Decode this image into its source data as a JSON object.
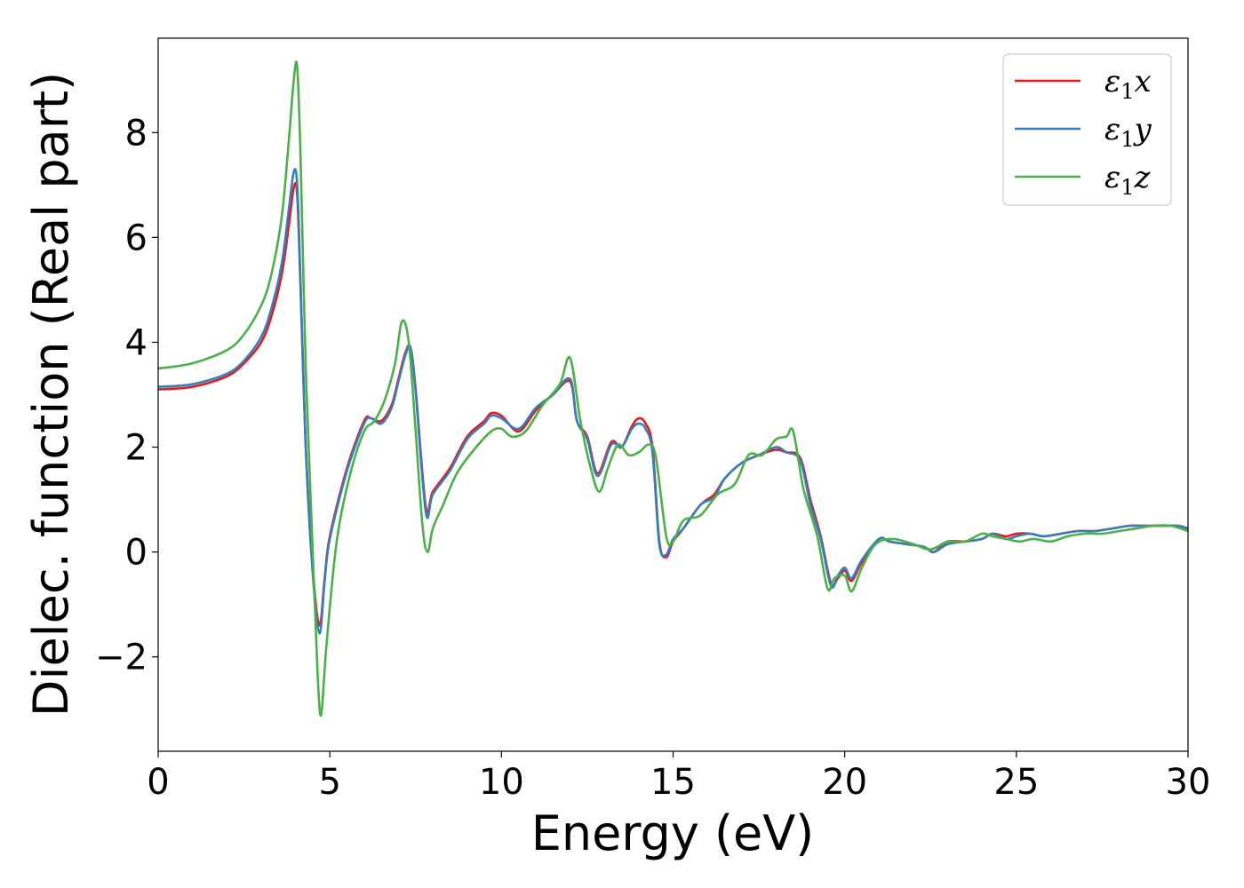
{
  "chart_data": {
    "type": "line",
    "title": "",
    "xlabel": "Energy (eV)",
    "ylabel": "Dielec. function (Real part)",
    "xlim": [
      0,
      30
    ],
    "ylim": [
      -3.8,
      9.8
    ],
    "xticks": [
      0,
      5,
      10,
      15,
      20,
      25,
      30
    ],
    "xtick_labels": [
      "0",
      "5",
      "10",
      "15",
      "20",
      "25",
      "30"
    ],
    "yticks": [
      -2,
      0,
      2,
      4,
      6,
      8
    ],
    "ytick_labels": [
      "−2",
      "0",
      "2",
      "4",
      "6",
      "8"
    ],
    "grid": false,
    "legend_position": "top-right",
    "series": [
      {
        "name": "ε₁x",
        "legend_base": "ε",
        "legend_sub": "1",
        "legend_var": "x",
        "color": "#e41a1c",
        "x": [
          0,
          1,
          2,
          2.5,
          3,
          3.3,
          3.6,
          3.8,
          3.95,
          4.05,
          4.15,
          4.3,
          4.5,
          4.7,
          4.85,
          5,
          5.5,
          6,
          6.2,
          6.5,
          6.8,
          7,
          7.2,
          7.35,
          7.5,
          7.8,
          8,
          8.5,
          9,
          9.5,
          9.7,
          10,
          10.5,
          11,
          11.5,
          12,
          12.2,
          12.5,
          12.8,
          13.2,
          13.5,
          13.8,
          14,
          14.2,
          14.4,
          14.6,
          14.8,
          15,
          15.3,
          15.8,
          16.2,
          16.5,
          17,
          17.5,
          18,
          18.3,
          18.7,
          19,
          19.3,
          19.6,
          19.8,
          20,
          20.2,
          20.5,
          21,
          21.3,
          21.8,
          22.3,
          22.6,
          23,
          23.5,
          24,
          24.3,
          24.7,
          25,
          25.4,
          25.8,
          26.3,
          26.8,
          27.3,
          27.8,
          28.3,
          28.8,
          29.3,
          29.7,
          30
        ],
        "values": [
          3.1,
          3.15,
          3.35,
          3.6,
          4.0,
          4.5,
          5.3,
          6.2,
          6.95,
          6.8,
          5.0,
          2.0,
          -0.3,
          -1.4,
          -0.5,
          0.3,
          1.6,
          2.5,
          2.55,
          2.5,
          2.8,
          3.3,
          3.8,
          3.9,
          3.1,
          0.85,
          1.15,
          1.6,
          2.2,
          2.5,
          2.65,
          2.6,
          2.3,
          2.7,
          3.0,
          3.25,
          2.5,
          2.2,
          1.5,
          2.1,
          2.0,
          2.4,
          2.55,
          2.45,
          2.0,
          0.2,
          -0.1,
          0.2,
          0.45,
          0.9,
          1.1,
          1.4,
          1.7,
          1.85,
          1.95,
          1.9,
          1.8,
          1.0,
          0.3,
          -0.6,
          -0.5,
          -0.35,
          -0.55,
          -0.2,
          0.25,
          0.2,
          0.15,
          0.1,
          0.0,
          0.2,
          0.2,
          0.25,
          0.35,
          0.3,
          0.35,
          0.35,
          0.3,
          0.35,
          0.4,
          0.4,
          0.45,
          0.5,
          0.5,
          0.5,
          0.5,
          0.45
        ]
      },
      {
        "name": "ε₁y",
        "legend_base": "ε",
        "legend_sub": "1",
        "legend_var": "y",
        "color": "#377eb8",
        "x": [
          0,
          1,
          2,
          2.5,
          3,
          3.3,
          3.6,
          3.8,
          3.95,
          4.05,
          4.15,
          4.3,
          4.5,
          4.7,
          4.85,
          5,
          5.5,
          6,
          6.2,
          6.5,
          6.8,
          7,
          7.2,
          7.35,
          7.5,
          7.8,
          8,
          8.5,
          9,
          9.5,
          9.7,
          10,
          10.5,
          11,
          11.5,
          12,
          12.2,
          12.5,
          12.8,
          13.2,
          13.5,
          13.8,
          14,
          14.2,
          14.4,
          14.6,
          14.8,
          15,
          15.3,
          15.8,
          16.2,
          16.5,
          17,
          17.5,
          18,
          18.3,
          18.7,
          19,
          19.3,
          19.6,
          19.8,
          20,
          20.2,
          20.5,
          21,
          21.3,
          21.8,
          22.3,
          22.6,
          23,
          23.5,
          24,
          24.3,
          24.7,
          25,
          25.4,
          25.8,
          26.3,
          26.8,
          27.3,
          27.8,
          28.3,
          28.8,
          29.3,
          29.7,
          30
        ],
        "values": [
          3.15,
          3.2,
          3.4,
          3.65,
          4.1,
          4.65,
          5.5,
          6.5,
          7.25,
          7.0,
          5.1,
          2.0,
          -0.4,
          -1.55,
          -0.55,
          0.25,
          1.55,
          2.45,
          2.55,
          2.45,
          2.75,
          3.25,
          3.75,
          3.9,
          3.05,
          0.75,
          1.1,
          1.55,
          2.15,
          2.45,
          2.6,
          2.55,
          2.35,
          2.75,
          3.0,
          3.3,
          2.5,
          2.15,
          1.45,
          2.05,
          2.0,
          2.35,
          2.45,
          2.35,
          1.9,
          0.15,
          -0.05,
          0.25,
          0.45,
          0.9,
          1.05,
          1.4,
          1.7,
          1.85,
          2.0,
          1.9,
          1.75,
          0.9,
          0.25,
          -0.65,
          -0.45,
          -0.3,
          -0.5,
          -0.15,
          0.25,
          0.2,
          0.15,
          0.1,
          0.0,
          0.15,
          0.2,
          0.25,
          0.35,
          0.25,
          0.3,
          0.35,
          0.3,
          0.35,
          0.4,
          0.4,
          0.45,
          0.5,
          0.5,
          0.5,
          0.5,
          0.45
        ]
      },
      {
        "name": "ε₁z",
        "legend_base": "ε",
        "legend_sub": "1",
        "legend_var": "z",
        "color": "#4daf4a",
        "x": [
          0,
          1,
          2,
          2.5,
          3,
          3.3,
          3.6,
          3.8,
          3.95,
          4.05,
          4.15,
          4.3,
          4.5,
          4.65,
          4.75,
          4.9,
          5.2,
          5.6,
          6,
          6.3,
          6.6,
          6.9,
          7.1,
          7.3,
          7.5,
          7.7,
          7.85,
          8,
          8.3,
          8.7,
          9.2,
          9.7,
          10,
          10.3,
          10.7,
          11.2,
          11.7,
          12,
          12.3,
          12.6,
          12.85,
          13.1,
          13.4,
          13.7,
          14,
          14.3,
          14.5,
          14.8,
          15,
          15.3,
          15.8,
          16.3,
          16.8,
          17.2,
          17.6,
          18,
          18.3,
          18.5,
          18.8,
          19.2,
          19.5,
          19.7,
          20,
          20.2,
          20.5,
          20.9,
          21.4,
          22,
          22.5,
          23,
          23.5,
          24,
          24.3,
          24.7,
          25.1,
          25.5,
          26,
          26.5,
          27,
          27.5,
          28,
          28.5,
          29,
          29.5,
          30
        ],
        "values": [
          3.5,
          3.6,
          3.85,
          4.15,
          4.7,
          5.3,
          6.4,
          7.8,
          9.0,
          9.25,
          7.5,
          3.5,
          0.0,
          -2.4,
          -3.1,
          -1.8,
          0.2,
          1.5,
          2.3,
          2.5,
          2.9,
          3.6,
          4.4,
          4.0,
          2.3,
          0.5,
          -0.0,
          0.45,
          0.9,
          1.5,
          1.95,
          2.3,
          2.35,
          2.2,
          2.3,
          2.8,
          3.2,
          3.7,
          2.5,
          1.6,
          1.15,
          1.6,
          2.05,
          1.85,
          1.9,
          2.05,
          1.8,
          0.3,
          0.2,
          0.6,
          0.7,
          1.1,
          1.3,
          1.85,
          1.85,
          2.15,
          2.2,
          2.3,
          1.2,
          0.3,
          -0.7,
          -0.5,
          -0.45,
          -0.75,
          -0.3,
          0.15,
          0.25,
          0.15,
          0.05,
          0.2,
          0.2,
          0.35,
          0.3,
          0.25,
          0.2,
          0.25,
          0.2,
          0.3,
          0.35,
          0.35,
          0.4,
          0.45,
          0.5,
          0.5,
          0.4
        ]
      }
    ]
  }
}
